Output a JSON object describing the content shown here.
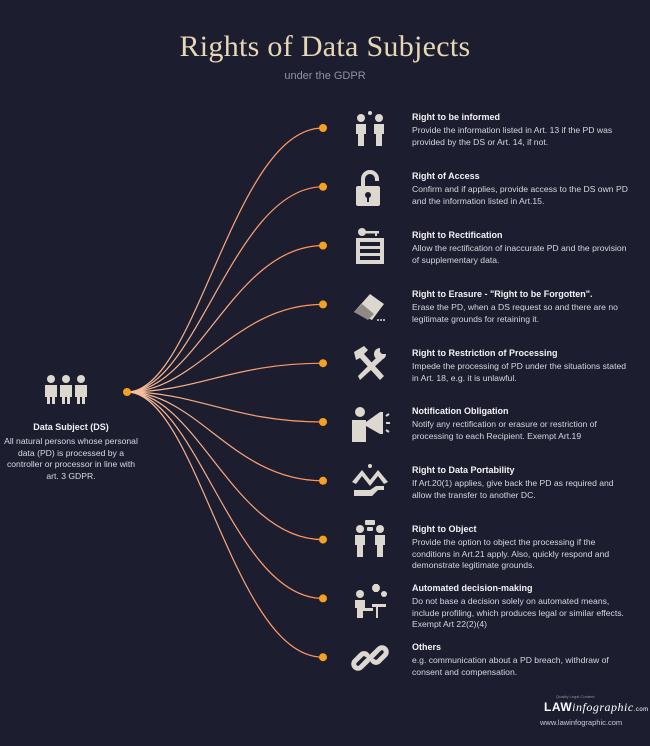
{
  "header": {
    "title": "Rights of Data Subjects",
    "subtitle": "under the GDPR"
  },
  "data_subject": {
    "title": "Data Subject (DS)",
    "description": "All natural persons whose personal data (PD) is processed by a controller or processor in line with art. 3 GDPR.",
    "icon": "people-group-icon"
  },
  "rights": [
    {
      "title": "Right to be informed",
      "description": "Provide the information listed in Art. 13 if the PD was provided by the DS or Art. 14, if not.",
      "icon": "conversation-icon"
    },
    {
      "title": "Right of Access",
      "description": "Confirm and if applies, provide access to the DS own PD and the information listed in Art.15.",
      "icon": "unlocked-padlock-icon"
    },
    {
      "title": "Right to Rectification",
      "description": "Allow the rectification of inaccurate PD and the provision of supplementary data.",
      "icon": "key-file-cabinet-icon"
    },
    {
      "title": "Right to Erasure - \"Right to be Forgotten\".",
      "description": "Erase the PD, when a DS request so and there are no legitimate grounds for retaining it.",
      "icon": "eraser-icon"
    },
    {
      "title": "Right to Restriction of Processing",
      "description": "Impede the processing of PD under the situations stated in Art. 18, e.g. it is unlawful.",
      "icon": "hammer-wrench-icon"
    },
    {
      "title": "Notification Obligation",
      "description": "Notify any rectification or erasure or restriction of processing to each Recipient. Exempt Art.19",
      "icon": "megaphone-icon"
    },
    {
      "title": "Right to Data Portability",
      "description": "If Art.20(1) applies, give back  the PD as required and allow the transfer to another DC.",
      "icon": "hand-transfer-icon"
    },
    {
      "title": "Right to Object",
      "description": "Provide the option to object the processing if the conditions in Art.21 apply. Also, quickly respond and demonstrate legitimate grounds.",
      "icon": "objection-dialogue-icon"
    },
    {
      "title": "Automated decision-making",
      "description": "Do not base a decision solely on automated means, include profiling, which produces legal or similar effects.  Exempt Art 22(2)(4)",
      "icon": "gears-person-icon"
    },
    {
      "title": "Others",
      "description": "e.g. communication about a PD breach, withdraw of consent  and compensation.",
      "icon": "chain-link-icon"
    }
  ],
  "footer": {
    "logo_text_bold": "LAW",
    "logo_text_script": "infographic",
    "logo_suffix": ".com",
    "logo_tagline": "Quality Legal Content",
    "website": "www.lawinfographic.com"
  },
  "colors": {
    "background": "#1c1e30",
    "accent": "#f5a023",
    "line_start": "#f4b08a",
    "line_end": "#ff8f5a",
    "icon": "#dcd8cf",
    "title": "#e8d7b5"
  }
}
